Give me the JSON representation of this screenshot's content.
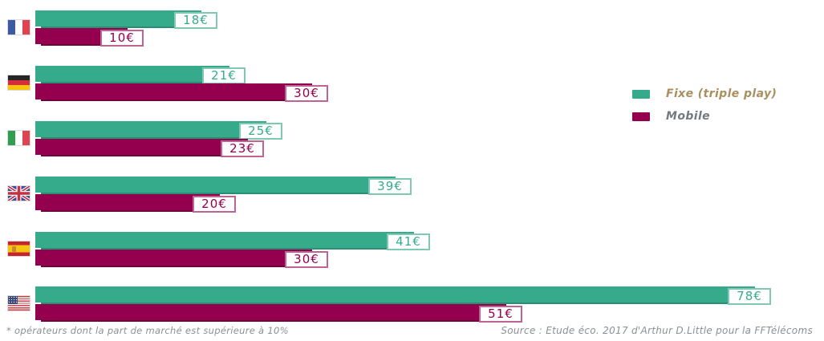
{
  "chart_data": {
    "type": "bar",
    "orientation": "horizontal",
    "unit": "€",
    "xlim": [
      0,
      80
    ],
    "grid": false,
    "axes_visible": false,
    "categories": [
      "France",
      "Allemagne",
      "Italie",
      "Royaume-Uni",
      "Espagne",
      "Etats-Unis"
    ],
    "flags": [
      "france-flag-icon",
      "germany-flag-icon",
      "italy-flag-icon",
      "uk-flag-icon",
      "spain-flag-icon",
      "usa-flag-icon"
    ],
    "series": [
      {
        "name": "Fixe (triple play)",
        "color": "#35AB8C",
        "values": [
          18,
          21,
          25,
          39,
          41,
          78
        ],
        "labels": [
          "18€",
          "21€",
          "25€",
          "39€",
          "41€",
          "78€"
        ]
      },
      {
        "name": "Mobile",
        "color": "#95004E",
        "values": [
          10,
          30,
          23,
          20,
          30,
          51
        ],
        "labels": [
          "10€",
          "30€",
          "23€",
          "20€",
          "30€",
          "51€"
        ]
      }
    ],
    "legend_position": "right"
  },
  "legend": {
    "items": [
      {
        "label": "Fixe (triple play)",
        "swatch_color": "#35AB8C",
        "text_color": "#A8905F"
      },
      {
        "label": "Mobile",
        "swatch_color": "#95004E",
        "text_color": "#75797E"
      }
    ]
  },
  "footnote": "* opérateurs dont la part de marché est supérieure à 10%",
  "source": "Source : Etude éco. 2017 d'Arthur D.Little pour la FFTélécoms"
}
